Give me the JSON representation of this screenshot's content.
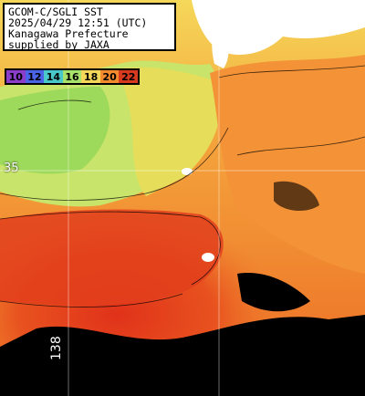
{
  "header": {
    "line1": "GCOM-C/SGLI SST",
    "line2": "2025/04/29 12:51 (UTC)",
    "line3": "Kanagawa Prefecture",
    "line4": "supplied by JAXA"
  },
  "legend": {
    "items": [
      {
        "label": "10",
        "color": "#8a3ec9"
      },
      {
        "label": "12",
        "color": "#4b63e6"
      },
      {
        "label": "14",
        "color": "#49c7c9"
      },
      {
        "label": "16",
        "color": "#a9e26a"
      },
      {
        "label": "18",
        "color": "#f5d85a"
      },
      {
        "label": "20",
        "color": "#f28a2e"
      },
      {
        "label": "22",
        "color": "#d73a1f"
      }
    ]
  },
  "labels": {
    "latitude": "35",
    "longitude": "138"
  },
  "colors": {
    "land": "#ffffff",
    "cloud_mask": "#000000",
    "grid": "#ffffff"
  }
}
